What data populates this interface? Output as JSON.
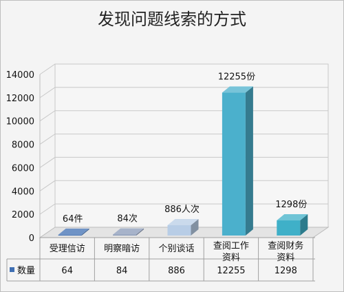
{
  "chart_data": {
    "type": "bar",
    "title": "发现问题线索的方式",
    "xlabel": "",
    "ylabel": "",
    "ylim": [
      0,
      14000
    ],
    "yticks": [
      0,
      2000,
      4000,
      6000,
      8000,
      10000,
      12000,
      14000
    ],
    "categories": [
      "受理信访",
      "明察暗访",
      "个别谈话",
      "查阅工作资料",
      "查阅财务资料"
    ],
    "category_lines": [
      [
        "受理信访"
      ],
      [
        "明察暗访"
      ],
      [
        "个别谈话"
      ],
      [
        "查阅工作",
        "资料"
      ],
      [
        "查阅财务",
        "资料"
      ]
    ],
    "series": [
      {
        "name": "数量",
        "values": [
          64,
          84,
          886,
          12255,
          1298
        ]
      }
    ],
    "data_labels": [
      "64件",
      "84次",
      "886人次",
      "12255份",
      "1298份"
    ],
    "bar_colors": [
      "#3f6fb3",
      "#8a9ab8",
      "#b8cde6",
      "#4bb0cc",
      "#3fb0c8"
    ],
    "legend_color": "#3f6fb3",
    "grid": true,
    "legend": "data-table"
  }
}
